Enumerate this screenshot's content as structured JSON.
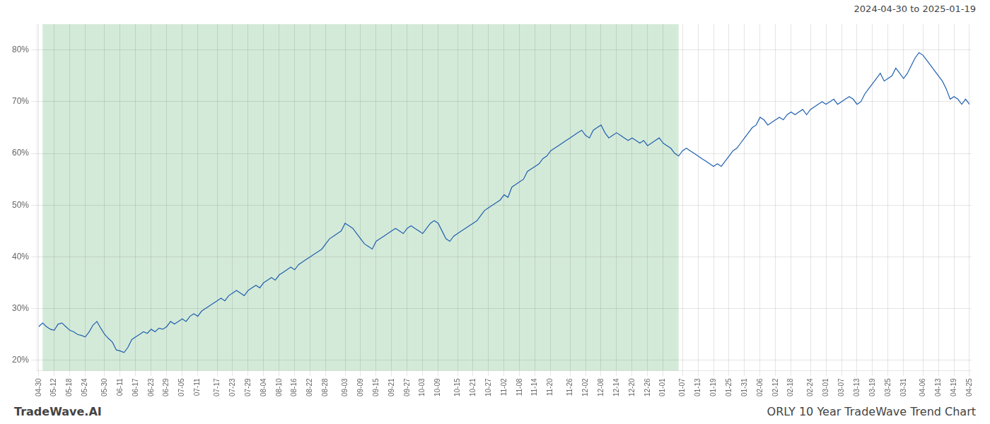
{
  "chart_data": {
    "type": "line",
    "annotations": [
      "2024-04-30 to 2025-01-19",
      "TradeWave.AI",
      "ORLY 10 Year TradeWave Trend Chart"
    ],
    "color": "#2060b0",
    "shaded_region": {
      "x": [
        1,
        165
      ],
      "color": "#d4ead8"
    },
    "grid": true,
    "ylim": [
      18,
      85
    ],
    "yticks": [
      {
        "value": 20,
        "label": "20%"
      },
      {
        "value": 30,
        "label": "30%"
      },
      {
        "value": 40,
        "label": "40%"
      },
      {
        "value": 50,
        "label": "50%"
      },
      {
        "value": 60,
        "label": "60%"
      },
      {
        "value": 70,
        "label": "70%"
      },
      {
        "value": 80,
        "label": "80%"
      }
    ],
    "categories": [
      "04-30",
      null,
      null,
      null,
      "05-12",
      null,
      null,
      null,
      "05-18",
      null,
      null,
      null,
      "05-24",
      null,
      null,
      null,
      null,
      "05-30",
      null,
      null,
      null,
      "06-11",
      null,
      null,
      null,
      "06-17",
      null,
      null,
      null,
      "06-23",
      null,
      null,
      null,
      "06-29",
      null,
      null,
      null,
      "07-05",
      null,
      null,
      null,
      "07-11",
      null,
      null,
      null,
      null,
      "07-17",
      null,
      null,
      null,
      "07-23",
      null,
      null,
      null,
      "07-29",
      null,
      null,
      null,
      "08-04",
      null,
      null,
      null,
      "08-10",
      null,
      null,
      null,
      "08-16",
      null,
      null,
      null,
      "08-22",
      null,
      null,
      null,
      "08-28",
      null,
      null,
      null,
      null,
      "09-03",
      null,
      null,
      null,
      "09-09",
      null,
      null,
      null,
      "09-15",
      null,
      null,
      null,
      "09-21",
      null,
      null,
      null,
      "09-27",
      null,
      null,
      null,
      "10-03",
      null,
      null,
      null,
      "10-09",
      null,
      null,
      null,
      null,
      "10-15",
      null,
      null,
      null,
      "10-21",
      null,
      null,
      null,
      "10-27",
      null,
      null,
      null,
      "11-02",
      null,
      null,
      null,
      "11-08",
      null,
      null,
      null,
      "11-14",
      null,
      null,
      null,
      "11-20",
      null,
      null,
      null,
      null,
      "11-26",
      null,
      null,
      null,
      "12-02",
      null,
      null,
      null,
      "12-08",
      null,
      null,
      null,
      "12-14",
      null,
      null,
      null,
      "12-20",
      null,
      null,
      null,
      "12-26",
      null,
      null,
      null,
      "01-01",
      null,
      null,
      null,
      null,
      "01-07",
      null,
      null,
      null,
      "01-13",
      null,
      null,
      null,
      "01-19",
      null,
      null,
      null,
      "01-25",
      null,
      null,
      null,
      "01-31",
      null,
      null,
      null,
      "02-06",
      null,
      null,
      null,
      "02-12",
      null,
      null,
      null,
      "02-18",
      null,
      null,
      null,
      null,
      "02-24",
      null,
      null,
      null,
      "03-01",
      null,
      null,
      null,
      "03-07",
      null,
      null,
      null,
      "03-13",
      null,
      null,
      null,
      "03-19",
      null,
      null,
      null,
      "03-25",
      null,
      null,
      null,
      "03-31",
      null,
      null,
      null,
      null,
      "04-06",
      null,
      null,
      null,
      "04-13",
      null,
      null,
      null,
      "04-19",
      null,
      null,
      null,
      "04-25"
    ],
    "values": [
      26.5,
      27.2,
      26.5,
      26.0,
      25.8,
      27.0,
      27.2,
      26.5,
      25.8,
      25.5,
      25.0,
      24.8,
      24.5,
      25.5,
      26.8,
      27.5,
      26.2,
      25.0,
      24.2,
      23.5,
      22.0,
      21.8,
      21.5,
      22.5,
      24.0,
      24.5,
      25.0,
      25.5,
      25.2,
      26.0,
      25.5,
      26.2,
      26.0,
      26.5,
      27.5,
      27.0,
      27.5,
      28.0,
      27.5,
      28.5,
      29.0,
      28.5,
      29.5,
      30.0,
      30.5,
      31.0,
      31.5,
      32.0,
      31.5,
      32.5,
      33.0,
      33.5,
      33.0,
      32.5,
      33.5,
      34.0,
      34.5,
      34.0,
      35.0,
      35.5,
      36.0,
      35.5,
      36.5,
      37.0,
      37.5,
      38.0,
      37.5,
      38.5,
      39.0,
      39.5,
      40.0,
      40.5,
      41.0,
      41.5,
      42.5,
      43.5,
      44.0,
      44.5,
      45.0,
      46.5,
      46.0,
      45.5,
      44.5,
      43.5,
      42.5,
      42.0,
      41.5,
      43.0,
      43.5,
      44.0,
      44.5,
      45.0,
      45.5,
      45.0,
      44.5,
      45.5,
      46.0,
      45.5,
      45.0,
      44.5,
      45.5,
      46.5,
      47.0,
      46.5,
      45.0,
      43.5,
      43.0,
      44.0,
      44.5,
      45.0,
      45.5,
      46.0,
      46.5,
      47.0,
      48.0,
      49.0,
      49.5,
      50.0,
      50.5,
      51.0,
      52.0,
      51.5,
      53.5,
      54.0,
      54.5,
      55.0,
      56.5,
      57.0,
      57.5,
      58.0,
      59.0,
      59.5,
      60.5,
      61.0,
      61.5,
      62.0,
      62.5,
      63.0,
      63.5,
      64.0,
      64.5,
      63.5,
      63.0,
      64.5,
      65.0,
      65.5,
      64.0,
      63.0,
      63.5,
      64.0,
      63.5,
      63.0,
      62.5,
      63.0,
      62.5,
      62.0,
      62.5,
      61.5,
      62.0,
      62.5,
      63.0,
      62.0,
      61.5,
      61.0,
      60.0,
      59.5,
      60.5,
      61.0,
      60.5,
      60.0,
      59.5,
      59.0,
      58.5,
      58.0,
      57.5,
      58.0,
      57.5,
      58.5,
      59.5,
      60.5,
      61.0,
      62.0,
      63.0,
      64.0,
      65.0,
      65.5,
      67.0,
      66.5,
      65.5,
      66.0,
      66.5,
      67.0,
      66.5,
      67.5,
      68.0,
      67.5,
      68.0,
      68.5,
      67.5,
      68.5,
      69.0,
      69.5,
      70.0,
      69.5,
      70.0,
      70.5,
      69.5,
      70.0,
      70.5,
      71.0,
      70.5,
      69.5,
      70.0,
      71.5,
      72.5,
      73.5,
      74.5,
      75.5,
      74.0,
      74.5,
      75.0,
      76.5,
      75.5,
      74.5,
      75.5,
      77.0,
      78.5,
      79.5,
      79.0,
      78.0,
      77.0,
      76.0,
      75.0,
      74.0,
      72.5,
      70.5,
      71.0,
      70.5,
      69.5,
      70.5,
      69.5
    ]
  }
}
